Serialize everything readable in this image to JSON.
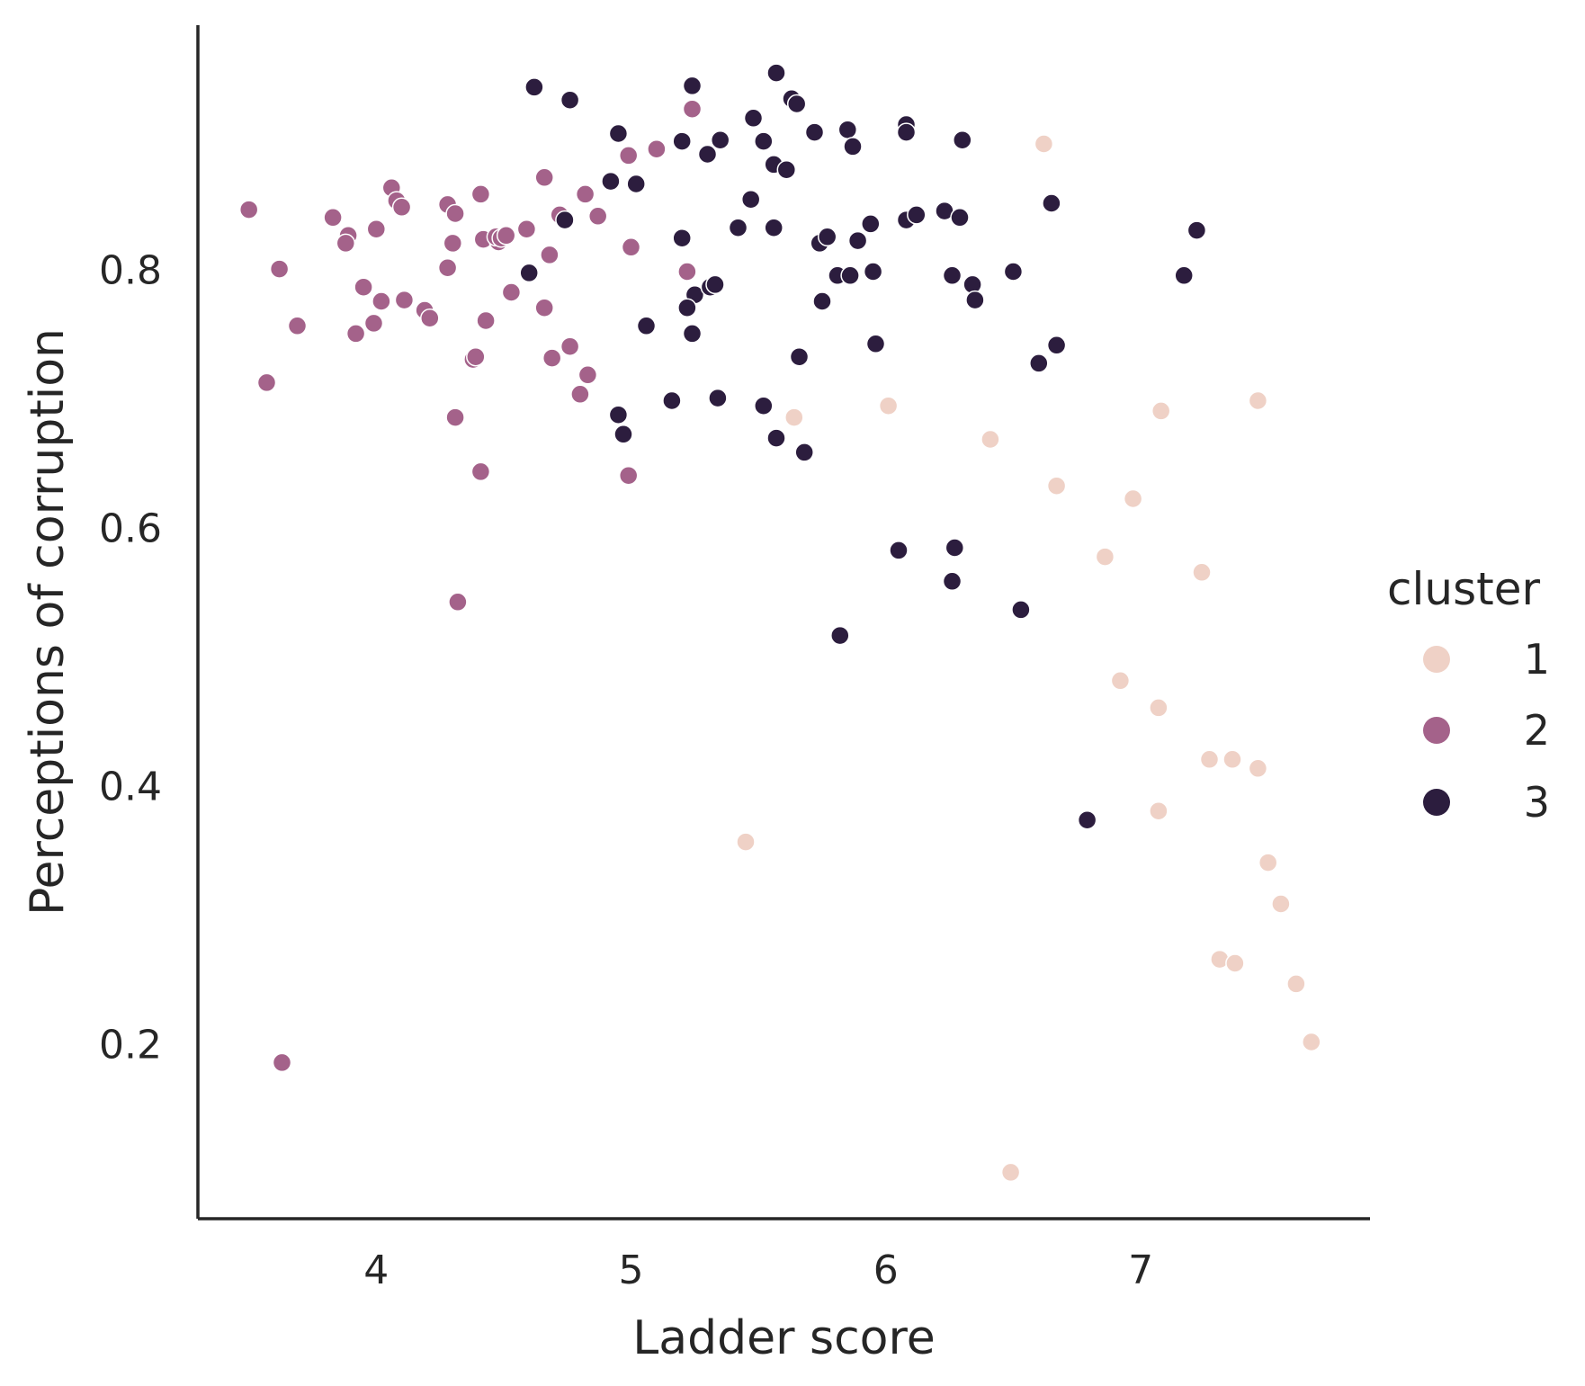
{
  "chart_data": {
    "type": "scatter",
    "xlabel": "Ladder score",
    "ylabel": "Perceptions of corruption",
    "xlim": [
      3.3,
      7.9
    ],
    "ylim": [
      0.065,
      0.99
    ],
    "xticks": [
      4,
      5,
      6,
      7
    ],
    "xtick_labels": [
      "4",
      "5",
      "6",
      "7"
    ],
    "yticks": [
      0.2,
      0.4,
      0.6,
      0.8
    ],
    "ytick_labels": [
      "0.2",
      "0.4",
      "0.6",
      "0.8"
    ],
    "grid": false,
    "legend": {
      "title": "cluster",
      "placement": "right",
      "labels": [
        "1",
        "2",
        "3"
      ]
    },
    "colors": {
      "1": "#efd1c6",
      "2": "#a4628a",
      "3": "#2c1d3e"
    },
    "series": [
      {
        "name": "1",
        "points": [
          [
            6.62,
            0.898
          ],
          [
            5.64,
            0.686
          ],
          [
            6.01,
            0.695
          ],
          [
            6.41,
            0.669
          ],
          [
            7.08,
            0.691
          ],
          [
            7.46,
            0.699
          ],
          [
            6.67,
            0.633
          ],
          [
            6.97,
            0.623
          ],
          [
            6.86,
            0.578
          ],
          [
            7.24,
            0.566
          ],
          [
            6.92,
            0.482
          ],
          [
            7.07,
            0.461
          ],
          [
            7.27,
            0.421
          ],
          [
            7.36,
            0.421
          ],
          [
            7.46,
            0.414
          ],
          [
            7.07,
            0.381
          ],
          [
            5.45,
            0.357
          ],
          [
            7.5,
            0.341
          ],
          [
            7.55,
            0.309
          ],
          [
            7.31,
            0.266
          ],
          [
            7.37,
            0.263
          ],
          [
            7.61,
            0.247
          ],
          [
            7.67,
            0.202
          ],
          [
            6.49,
            0.101
          ]
        ]
      },
      {
        "name": "2",
        "points": [
          [
            3.5,
            0.847
          ],
          [
            3.62,
            0.801
          ],
          [
            3.57,
            0.713
          ],
          [
            3.69,
            0.757
          ],
          [
            3.83,
            0.841
          ],
          [
            3.89,
            0.827
          ],
          [
            3.88,
            0.821
          ],
          [
            3.95,
            0.787
          ],
          [
            4.0,
            0.832
          ],
          [
            4.02,
            0.776
          ],
          [
            3.92,
            0.751
          ],
          [
            3.99,
            0.759
          ],
          [
            4.06,
            0.864
          ],
          [
            4.08,
            0.854
          ],
          [
            4.1,
            0.849
          ],
          [
            4.11,
            0.777
          ],
          [
            4.19,
            0.769
          ],
          [
            4.21,
            0.763
          ],
          [
            4.28,
            0.851
          ],
          [
            4.28,
            0.802
          ],
          [
            4.31,
            0.844
          ],
          [
            4.3,
            0.821
          ],
          [
            4.41,
            0.859
          ],
          [
            4.42,
            0.824
          ],
          [
            4.48,
            0.822
          ],
          [
            4.47,
            0.826
          ],
          [
            4.49,
            0.825
          ],
          [
            4.51,
            0.827
          ],
          [
            4.59,
            0.832
          ],
          [
            4.53,
            0.783
          ],
          [
            4.43,
            0.761
          ],
          [
            4.38,
            0.731
          ],
          [
            4.39,
            0.733
          ],
          [
            4.66,
            0.872
          ],
          [
            4.72,
            0.843
          ],
          [
            4.82,
            0.859
          ],
          [
            4.87,
            0.842
          ],
          [
            4.68,
            0.812
          ],
          [
            4.66,
            0.771
          ],
          [
            4.69,
            0.732
          ],
          [
            4.76,
            0.741
          ],
          [
            4.83,
            0.719
          ],
          [
            4.8,
            0.704
          ],
          [
            4.31,
            0.686
          ],
          [
            4.41,
            0.644
          ],
          [
            4.99,
            0.889
          ],
          [
            5.1,
            0.894
          ],
          [
            5.0,
            0.818
          ],
          [
            5.22,
            0.799
          ],
          [
            4.99,
            0.641
          ],
          [
            5.24,
            0.925
          ],
          [
            4.32,
            0.543
          ],
          [
            3.63,
            0.186
          ]
        ]
      },
      {
        "name": "3",
        "points": [
          [
            4.62,
            0.942
          ],
          [
            4.76,
            0.932
          ],
          [
            5.24,
            0.943
          ],
          [
            5.57,
            0.953
          ],
          [
            5.63,
            0.933
          ],
          [
            5.65,
            0.929
          ],
          [
            5.48,
            0.918
          ],
          [
            4.95,
            0.906
          ],
          [
            5.2,
            0.9
          ],
          [
            5.35,
            0.901
          ],
          [
            5.3,
            0.89
          ],
          [
            5.52,
            0.9
          ],
          [
            5.72,
            0.907
          ],
          [
            5.85,
            0.909
          ],
          [
            5.87,
            0.896
          ],
          [
            5.56,
            0.882
          ],
          [
            5.61,
            0.878
          ],
          [
            6.08,
            0.913
          ],
          [
            6.08,
            0.907
          ],
          [
            6.3,
            0.901
          ],
          [
            4.92,
            0.869
          ],
          [
            5.02,
            0.867
          ],
          [
            5.47,
            0.855
          ],
          [
            6.65,
            0.852
          ],
          [
            4.74,
            0.839
          ],
          [
            5.2,
            0.825
          ],
          [
            5.42,
            0.833
          ],
          [
            5.56,
            0.833
          ],
          [
            5.74,
            0.821
          ],
          [
            5.77,
            0.826
          ],
          [
            5.89,
            0.823
          ],
          [
            5.94,
            0.836
          ],
          [
            6.08,
            0.839
          ],
          [
            6.12,
            0.843
          ],
          [
            6.23,
            0.846
          ],
          [
            6.29,
            0.841
          ],
          [
            7.22,
            0.831
          ],
          [
            4.6,
            0.798
          ],
          [
            5.25,
            0.781
          ],
          [
            5.22,
            0.771
          ],
          [
            5.31,
            0.787
          ],
          [
            5.33,
            0.789
          ],
          [
            5.81,
            0.796
          ],
          [
            5.86,
            0.796
          ],
          [
            5.95,
            0.799
          ],
          [
            6.26,
            0.796
          ],
          [
            6.34,
            0.789
          ],
          [
            6.35,
            0.777
          ],
          [
            6.5,
            0.799
          ],
          [
            7.17,
            0.796
          ],
          [
            5.75,
            0.776
          ],
          [
            5.06,
            0.757
          ],
          [
            5.24,
            0.751
          ],
          [
            5.96,
            0.743
          ],
          [
            6.67,
            0.742
          ],
          [
            5.66,
            0.733
          ],
          [
            6.6,
            0.728
          ],
          [
            5.16,
            0.699
          ],
          [
            5.34,
            0.701
          ],
          [
            5.52,
            0.695
          ],
          [
            4.95,
            0.688
          ],
          [
            4.97,
            0.673
          ],
          [
            5.57,
            0.67
          ],
          [
            5.68,
            0.659
          ],
          [
            6.05,
            0.583
          ],
          [
            6.27,
            0.585
          ],
          [
            6.26,
            0.559
          ],
          [
            6.53,
            0.537
          ],
          [
            5.82,
            0.517
          ],
          [
            6.79,
            0.374
          ]
        ]
      }
    ]
  }
}
